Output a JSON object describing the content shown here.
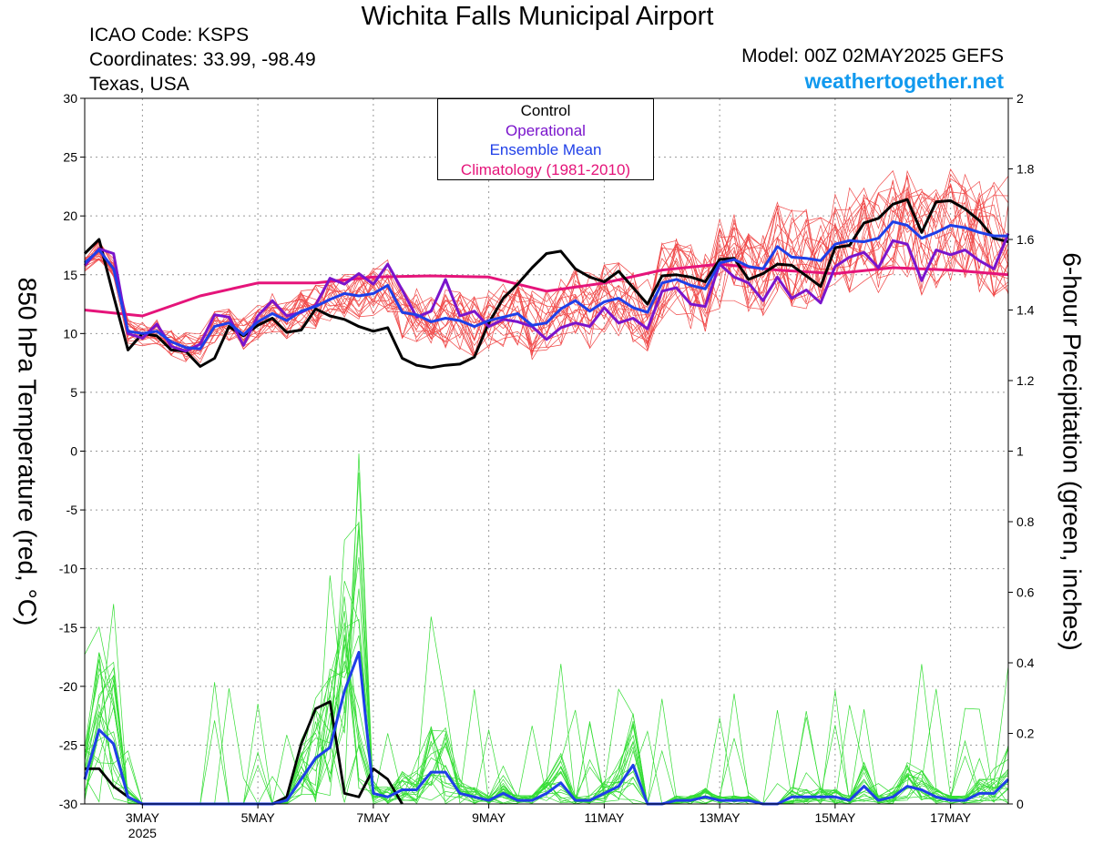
{
  "header": {
    "title": "Wichita Falls Municipal Airport",
    "icao": "ICAO Code: KSPS",
    "coords": "Coordinates: 33.99, -98.49",
    "region": "Texas, USA",
    "model": "Model: 00Z 02MAY2025 GEFS",
    "site": "weathertogether.net"
  },
  "legend": {
    "control": "Control",
    "operational": "Operational",
    "ensemble_mean": "Ensemble Mean",
    "climatology": "Climatology (1981-2010)"
  },
  "colors": {
    "control": "#000000",
    "operational": "#7a14cc",
    "ensemble_mean": "#1f3fe8",
    "climatology": "#e5147a",
    "members_temp": "#f04848",
    "members_precip": "#33dd33",
    "website": "#1199ee",
    "grid": "#999999"
  },
  "chart_data": {
    "type": "line",
    "left_axis": {
      "label": "850 hPa Temperature (red, °C)",
      "range": [
        -30,
        30
      ],
      "ticks": [
        30,
        25,
        20,
        15,
        10,
        5,
        0,
        -5,
        -10,
        -15,
        -20,
        -25,
        -30
      ]
    },
    "right_axis": {
      "label": "6-hour Precipitation (green, inches)",
      "range": [
        0,
        2
      ],
      "ticks": [
        "2",
        "1.8",
        "1.6",
        "1.4",
        "1.2",
        "1",
        "0.8",
        "0.6",
        "0.4",
        "0.2",
        "0"
      ]
    },
    "x_axis": {
      "start_day": 2.0,
      "end_day": 18.0,
      "ticks": [
        {
          "day": 3,
          "label": "3MAY",
          "sub": "2025"
        },
        {
          "day": 5,
          "label": "5MAY"
        },
        {
          "day": 7,
          "label": "7MAY"
        },
        {
          "day": 9,
          "label": "9MAY"
        },
        {
          "day": 11,
          "label": "11MAY"
        },
        {
          "day": 13,
          "label": "13MAY"
        },
        {
          "day": 15,
          "label": "15MAY"
        },
        {
          "day": 17,
          "label": "17MAY"
        }
      ]
    },
    "grid": true,
    "series": [
      {
        "name": "Climatology (1981-2010)",
        "axis": "temp",
        "x": [
          2.0,
          3.0,
          4.0,
          5.0,
          6.0,
          7.0,
          8.0,
          9.0,
          10.0,
          11.0,
          12.0,
          13.0,
          14.0,
          15.0,
          16.0,
          17.0,
          18.0
        ],
        "y": [
          12.0,
          11.5,
          13.2,
          14.3,
          14.3,
          14.8,
          14.9,
          14.8,
          13.6,
          14.3,
          15.4,
          15.9,
          15.4,
          15.1,
          15.6,
          15.4,
          15.0
        ]
      },
      {
        "name": "Control",
        "axis": "temp",
        "x": [
          2.0,
          2.25,
          2.5,
          2.75,
          3.0,
          3.25,
          3.5,
          3.75,
          4.0,
          4.25,
          4.5,
          4.75,
          5.0,
          5.25,
          5.5,
          5.75,
          6.0,
          6.25,
          6.5,
          6.75,
          7.0,
          7.25,
          7.5,
          7.75,
          8.0,
          8.25,
          8.5,
          8.75,
          9.0,
          9.25,
          9.5,
          9.75,
          10.0,
          10.25,
          10.5,
          10.75,
          11.0,
          11.25,
          11.5,
          11.75,
          12.0,
          12.25,
          12.5,
          12.75,
          13.0,
          13.25,
          13.5,
          13.75,
          14.0,
          14.25,
          14.5,
          14.75,
          15.0,
          15.25,
          15.5,
          15.75,
          16.0,
          16.25,
          16.5,
          16.75,
          17.0,
          17.25,
          17.5,
          17.75,
          18.0
        ],
        "y": [
          16.8,
          18.0,
          13.2,
          8.6,
          10.0,
          9.8,
          8.6,
          8.5,
          7.2,
          7.9,
          10.6,
          9.8,
          10.7,
          11.3,
          10.1,
          10.3,
          12.1,
          11.5,
          11.2,
          10.6,
          10.2,
          10.5,
          7.9,
          7.3,
          7.1,
          7.3,
          7.4,
          8.0,
          10.9,
          13.0,
          14.2,
          15.6,
          16.8,
          17.0,
          15.5,
          14.8,
          14.4,
          15.3,
          13.9,
          12.5,
          14.9,
          15.0,
          14.8,
          14.4,
          16.3,
          16.4,
          14.6,
          15.1,
          15.9,
          15.8,
          14.9,
          14.0,
          17.3,
          17.5,
          19.4,
          19.8,
          21.0,
          21.4,
          18.6,
          21.2,
          21.3,
          20.6,
          19.6,
          18.1,
          17.8
        ]
      },
      {
        "name": "Operational",
        "axis": "temp",
        "x": [
          2.0,
          2.25,
          2.5,
          2.75,
          3.0,
          3.25,
          3.5,
          3.75,
          4.0,
          4.25,
          4.5,
          4.75,
          5.0,
          5.25,
          5.5,
          5.75,
          6.0,
          6.25,
          6.5,
          6.75,
          7.0,
          7.25,
          7.5,
          7.75,
          8.0,
          8.25,
          8.5,
          8.75,
          9.0,
          9.25,
          9.5,
          9.75,
          10.0,
          10.25,
          10.5,
          10.75,
          11.0,
          11.25,
          11.5,
          11.75,
          12.0,
          12.25,
          12.5,
          12.75,
          13.0,
          13.25,
          13.5,
          13.75,
          14.0,
          14.25,
          14.5,
          14.75,
          15.0,
          15.25,
          15.5,
          15.75,
          16.0,
          16.25,
          16.5,
          16.75,
          17.0,
          17.25,
          17.5,
          17.75,
          18.0
        ],
        "y": [
          15.8,
          17.2,
          16.8,
          10.0,
          9.6,
          10.8,
          8.9,
          8.5,
          9.1,
          11.6,
          11.4,
          9.0,
          11.5,
          12.8,
          11.5,
          11.8,
          12.4,
          14.7,
          14.2,
          15.1,
          14.2,
          15.9,
          13.7,
          11.4,
          11.9,
          14.6,
          11.5,
          11.9,
          10.6,
          11.2,
          11.0,
          10.6,
          9.5,
          10.5,
          10.9,
          10.6,
          12.2,
          10.9,
          11.3,
          10.4,
          13.6,
          13.9,
          12.5,
          12.3,
          15.9,
          14.8,
          14.3,
          12.8,
          14.8,
          13.0,
          13.7,
          12.6,
          15.7,
          16.5,
          16.9,
          15.6,
          17.9,
          17.6,
          14.5,
          17.1,
          16.7,
          17.1,
          16.2,
          15.5,
          18.5
        ]
      },
      {
        "name": "Ensemble Mean",
        "axis": "temp",
        "x": [
          2.0,
          2.25,
          2.5,
          2.75,
          3.0,
          3.25,
          3.5,
          3.75,
          4.0,
          4.25,
          4.5,
          4.75,
          5.0,
          5.25,
          5.5,
          5.75,
          6.0,
          6.25,
          6.5,
          6.75,
          7.0,
          7.25,
          7.5,
          7.75,
          8.0,
          8.25,
          8.5,
          8.75,
          9.0,
          9.25,
          9.5,
          9.75,
          10.0,
          10.25,
          10.5,
          10.75,
          11.0,
          11.25,
          11.5,
          11.75,
          12.0,
          12.25,
          12.5,
          12.75,
          13.0,
          13.25,
          13.5,
          13.75,
          14.0,
          14.25,
          14.5,
          14.75,
          15.0,
          15.25,
          15.5,
          15.75,
          16.0,
          16.25,
          16.5,
          16.75,
          17.0,
          17.25,
          17.5,
          17.75,
          18.0
        ],
        "y": [
          16.0,
          17.1,
          15.5,
          10.2,
          10.0,
          10.2,
          9.3,
          8.8,
          8.7,
          10.6,
          10.9,
          9.9,
          11.0,
          11.7,
          11.1,
          11.9,
          12.3,
          12.9,
          13.4,
          13.2,
          13.4,
          14.1,
          11.8,
          11.6,
          11.0,
          11.3,
          11.1,
          10.6,
          11.1,
          11.4,
          11.7,
          10.7,
          10.9,
          12.1,
          12.8,
          11.9,
          12.7,
          13.0,
          12.2,
          11.8,
          14.3,
          14.6,
          14.1,
          13.8,
          16.0,
          16.3,
          15.7,
          15.5,
          17.4,
          16.5,
          16.4,
          16.2,
          17.6,
          17.9,
          17.8,
          18.1,
          19.5,
          19.2,
          18.1,
          18.6,
          19.2,
          19.0,
          18.6,
          18.3,
          18.3
        ]
      },
      {
        "name": "Control precipitation",
        "axis": "precip",
        "x": [
          2.0,
          2.25,
          2.5,
          2.75,
          3.0,
          3.25,
          3.5,
          5.25,
          5.5,
          5.75,
          6.0,
          6.25,
          6.5,
          6.75,
          7.0,
          7.25,
          7.5
        ],
        "y": [
          0.1,
          0.1,
          0.05,
          0.02,
          0.0,
          0.0,
          0.0,
          0.0,
          0.02,
          0.17,
          0.27,
          0.29,
          0.03,
          0.02,
          0.1,
          0.07,
          0.0
        ]
      },
      {
        "name": "Ensemble Mean precipitation",
        "axis": "precip",
        "x": [
          2.0,
          2.25,
          2.5,
          2.75,
          3.0,
          3.25,
          3.5,
          3.75,
          5.25,
          5.5,
          5.75,
          6.0,
          6.25,
          6.5,
          6.75,
          7.0,
          7.25,
          7.5,
          7.75,
          8.0,
          8.25,
          8.5,
          8.75,
          9.0,
          9.25,
          9.5,
          9.75,
          10.0,
          10.25,
          10.5,
          10.75,
          11.0,
          11.25,
          11.5,
          11.75,
          12.0,
          12.25,
          12.5,
          12.75,
          13.0,
          13.25,
          13.5,
          13.75,
          14.0,
          14.25,
          14.5,
          14.75,
          15.0,
          15.25,
          15.5,
          15.75,
          16.0,
          16.25,
          16.5,
          16.75,
          17.0,
          17.25,
          17.5,
          17.75,
          18.0
        ],
        "y": [
          0.07,
          0.21,
          0.17,
          0.02,
          0.0,
          0.0,
          0.0,
          0.0,
          0.0,
          0.01,
          0.07,
          0.13,
          0.16,
          0.32,
          0.43,
          0.03,
          0.02,
          0.04,
          0.04,
          0.09,
          0.09,
          0.03,
          0.02,
          0.01,
          0.03,
          0.01,
          0.01,
          0.03,
          0.06,
          0.01,
          0.01,
          0.03,
          0.05,
          0.11,
          0.0,
          0.0,
          0.01,
          0.01,
          0.02,
          0.01,
          0.01,
          0.01,
          0.0,
          0.0,
          0.02,
          0.02,
          0.02,
          0.02,
          0.01,
          0.05,
          0.01,
          0.02,
          0.05,
          0.04,
          0.02,
          0.01,
          0.01,
          0.03,
          0.03,
          0.07
        ]
      }
    ]
  }
}
